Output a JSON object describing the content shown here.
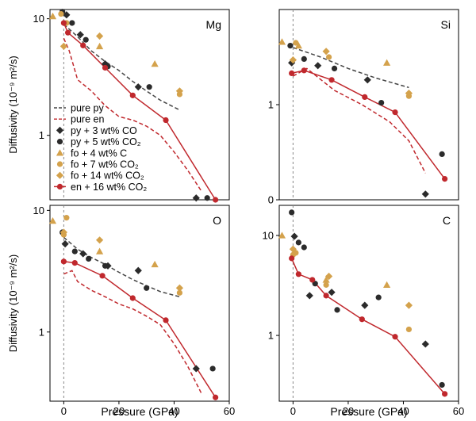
{
  "chart_data": [
    {
      "type": "scatter",
      "panel_label": "Mg",
      "ylabel": "Diffusivity (10⁻⁹ m²/s)",
      "xlabel": "",
      "xlim": [
        -5,
        60
      ],
      "ylim": [
        0.28,
        12
      ],
      "yscale": "log",
      "x_ticks": [],
      "y_ticks": [
        {
          "v": 1,
          "l": "1"
        },
        {
          "v": 10,
          "l": "10"
        }
      ],
      "series": [
        {
          "key": "pure_py",
          "name": "pure py",
          "points": [
            [
              0,
              9.0
            ],
            [
              5,
              7.0
            ],
            [
              10,
              5.3
            ],
            [
              15,
              4.3
            ],
            [
              20,
              3.6
            ],
            [
              25,
              2.9
            ],
            [
              30,
              2.4
            ],
            [
              35,
              2.0
            ],
            [
              42,
              1.65
            ]
          ]
        },
        {
          "key": "pure_en",
          "name": "pure en",
          "points": [
            [
              0,
              6.8
            ],
            [
              2,
              5.3
            ],
            [
              5,
              3.0
            ],
            [
              10,
              2.4
            ],
            [
              15,
              1.8
            ],
            [
              20,
              1.45
            ],
            [
              25,
              1.35
            ],
            [
              30,
              1.2
            ],
            [
              35,
              1.0
            ],
            [
              40,
              0.72
            ],
            [
              45,
              0.5
            ],
            [
              50,
              0.33
            ]
          ]
        },
        {
          "key": "py_3CO",
          "name": "py + 3 wt% CO",
          "points": [
            [
              1,
              10.8
            ],
            [
              6,
              7.3
            ],
            [
              15,
              4.1
            ],
            [
              27,
              2.6
            ],
            [
              48,
              0.29
            ]
          ]
        },
        {
          "key": "py_5CO2",
          "name": "py + 5 wt% CO₂",
          "points": [
            [
              -0.5,
              11.5
            ],
            [
              3,
              9.2
            ],
            [
              8,
              6.6
            ],
            [
              16,
              3.9
            ],
            [
              31,
              2.6
            ],
            [
              52,
              0.29
            ]
          ]
        },
        {
          "key": "fo_4C",
          "name": "fo + 4 wt% C",
          "points": [
            [
              -4,
              10.5
            ],
            [
              13,
              5.8
            ],
            [
              33,
              4.1
            ]
          ]
        },
        {
          "key": "fo_7CO2",
          "name": "fo + 7 wt% CO₂",
          "points": [
            [
              -1,
              11.0
            ],
            [
              1,
              9.2
            ],
            [
              42,
              2.25
            ]
          ]
        },
        {
          "key": "fo_14CO2",
          "name": "fo + 14 wt% CO₂",
          "points": [
            [
              0,
              5.8
            ],
            [
              13,
              7.1
            ],
            [
              42,
              2.4
            ]
          ]
        },
        {
          "key": "en_16CO2",
          "name": "en + 16 wt% CO₂",
          "points": [
            [
              0,
              9.2
            ],
            [
              1.5,
              7.6
            ],
            [
              7,
              5.9
            ],
            [
              15,
              3.8
            ],
            [
              25,
              2.2
            ],
            [
              37,
              1.35
            ],
            [
              55,
              0.28
            ]
          ]
        }
      ]
    },
    {
      "type": "scatter",
      "panel_label": "Si",
      "ylabel": "",
      "xlabel": "",
      "xlim": [
        -5,
        60
      ],
      "ylim": [
        0,
        2.0
      ],
      "yscale": "linear",
      "x_ticks": [],
      "y_ticks": [
        {
          "v": 0,
          "l": "0"
        },
        {
          "v": 1,
          "l": "1"
        }
      ],
      "series": [
        {
          "key": "pure_py",
          "points": [
            [
              0,
              1.6
            ],
            [
              10,
              1.5
            ],
            [
              20,
              1.38
            ],
            [
              30,
              1.28
            ],
            [
              42,
              1.18
            ]
          ]
        },
        {
          "key": "pure_en",
          "points": [
            [
              0,
              1.3
            ],
            [
              5,
              1.38
            ],
            [
              15,
              1.15
            ],
            [
              25,
              1.0
            ],
            [
              35,
              0.82
            ],
            [
              42,
              0.62
            ],
            [
              48,
              0.28
            ]
          ]
        },
        {
          "key": "py_3CO",
          "points": [
            [
              -0.5,
              1.44
            ],
            [
              9,
              1.41
            ],
            [
              27,
              1.26
            ],
            [
              48,
              0.06
            ]
          ]
        },
        {
          "key": "py_5CO2",
          "points": [
            [
              -1,
              1.62
            ],
            [
              4,
              1.48
            ],
            [
              15,
              1.38
            ],
            [
              32,
              1.02
            ],
            [
              54,
              0.48
            ]
          ]
        },
        {
          "key": "fo_4C",
          "points": [
            [
              -4,
              1.66
            ],
            [
              2,
              1.62
            ],
            [
              34,
              1.44
            ]
          ]
        },
        {
          "key": "fo_7CO2",
          "points": [
            [
              1,
              1.65
            ],
            [
              13,
              1.5
            ],
            [
              42,
              1.09
            ]
          ]
        },
        {
          "key": "fo_14CO2",
          "points": [
            [
              0,
              1.47
            ],
            [
              12,
              1.56
            ],
            [
              42,
              1.12
            ]
          ]
        },
        {
          "key": "en_16CO2",
          "points": [
            [
              -0.5,
              1.33
            ],
            [
              4,
              1.36
            ],
            [
              14,
              1.26
            ],
            [
              26,
              1.08
            ],
            [
              37,
              0.92
            ],
            [
              55,
              0.22
            ]
          ]
        }
      ]
    },
    {
      "type": "scatter",
      "panel_label": "O",
      "ylabel": "Diffusivity (10⁻⁹ m²/s)",
      "xlabel": "Pressure (GPa)",
      "xlim": [
        -5,
        60
      ],
      "ylim": [
        0.27,
        11
      ],
      "yscale": "log",
      "x_ticks": [
        {
          "v": 0,
          "l": "0"
        },
        {
          "v": 20,
          "l": "20"
        },
        {
          "v": 40,
          "l": "40"
        },
        {
          "v": 60,
          "l": "60"
        }
      ],
      "y_ticks": [
        {
          "v": 1,
          "l": "1"
        },
        {
          "v": 10,
          "l": "10"
        }
      ],
      "series": [
        {
          "key": "pure_py",
          "points": [
            [
              0,
              6.0
            ],
            [
              5,
              4.8
            ],
            [
              10,
              4.1
            ],
            [
              15,
              3.6
            ],
            [
              20,
              3.1
            ],
            [
              25,
              2.7
            ],
            [
              30,
              2.4
            ],
            [
              35,
              2.15
            ],
            [
              42,
              1.95
            ]
          ]
        },
        {
          "key": "pure_en",
          "points": [
            [
              0,
              3.0
            ],
            [
              3,
              3.2
            ],
            [
              5,
              2.6
            ],
            [
              10,
              2.2
            ],
            [
              15,
              1.95
            ],
            [
              20,
              1.7
            ],
            [
              25,
              1.55
            ],
            [
              30,
              1.35
            ],
            [
              35,
              1.15
            ],
            [
              40,
              0.8
            ],
            [
              45,
              0.52
            ],
            [
              50,
              0.31
            ]
          ]
        },
        {
          "key": "py_3CO",
          "points": [
            [
              0.5,
              5.3
            ],
            [
              7,
              4.4
            ],
            [
              16,
              3.5
            ],
            [
              27,
              3.2
            ],
            [
              48,
              0.5
            ]
          ]
        },
        {
          "key": "py_5CO2",
          "points": [
            [
              -0.5,
              6.6
            ],
            [
              4,
              4.6
            ],
            [
              9,
              4.0
            ],
            [
              15,
              3.5
            ],
            [
              30,
              2.3
            ],
            [
              54,
              0.5
            ]
          ]
        },
        {
          "key": "fo_4C",
          "points": [
            [
              -4,
              8.2
            ],
            [
              13,
              4.6
            ],
            [
              33,
              3.6
            ]
          ]
        },
        {
          "key": "fo_7CO2",
          "points": [
            [
              0,
              6.3
            ],
            [
              1,
              8.7
            ],
            [
              42,
              2.1
            ]
          ]
        },
        {
          "key": "fo_14CO2",
          "points": [
            [
              0,
              6.6
            ],
            [
              13,
              5.7
            ],
            [
              42,
              2.3
            ]
          ]
        },
        {
          "key": "en_16CO2",
          "points": [
            [
              0,
              3.8
            ],
            [
              4,
              3.7
            ],
            [
              14,
              2.9
            ],
            [
              25,
              1.9
            ],
            [
              37,
              1.25
            ],
            [
              55,
              0.29
            ]
          ]
        }
      ]
    },
    {
      "type": "scatter",
      "panel_label": "C",
      "ylabel": "",
      "xlabel": "Pressure (GPa)",
      "xlim": [
        -5,
        60
      ],
      "ylim": [
        0.22,
        20
      ],
      "yscale": "log",
      "x_ticks": [
        {
          "v": 0,
          "l": "0"
        },
        {
          "v": 20,
          "l": "20"
        },
        {
          "v": 40,
          "l": "40"
        },
        {
          "v": 60,
          "l": "60"
        }
      ],
      "y_ticks": [
        {
          "v": 1,
          "l": "1"
        },
        {
          "v": 10,
          "l": "10"
        }
      ],
      "series": [
        {
          "key": "py_3CO",
          "points": [
            [
              0.5,
              9.8
            ],
            [
              6,
              2.5
            ],
            [
              14,
              2.7
            ],
            [
              26,
              2.0
            ],
            [
              48,
              0.82
            ]
          ]
        },
        {
          "key": "py_5CO2",
          "points": [
            [
              -0.5,
              17.0
            ],
            [
              2,
              8.5
            ],
            [
              4,
              7.6
            ],
            [
              8,
              3.3
            ],
            [
              16,
              1.8
            ],
            [
              31,
              2.4
            ],
            [
              54,
              0.32
            ]
          ]
        },
        {
          "key": "fo_4C",
          "points": [
            [
              -4,
              10.0
            ],
            [
              12,
              3.6
            ],
            [
              34,
              3.2
            ]
          ]
        },
        {
          "key": "fo_7CO2",
          "points": [
            [
              0,
              6.4
            ],
            [
              1,
              6.7
            ],
            [
              12,
              3.2
            ],
            [
              42,
              1.15
            ]
          ]
        },
        {
          "key": "fo_14CO2",
          "points": [
            [
              0,
              7.3
            ],
            [
              13,
              3.9
            ],
            [
              42,
              2.0
            ]
          ]
        },
        {
          "key": "en_16CO2",
          "points": [
            [
              -0.5,
              5.9
            ],
            [
              2,
              4.1
            ],
            [
              7,
              3.6
            ],
            [
              12,
              2.5
            ],
            [
              25,
              1.45
            ],
            [
              37,
              0.97
            ],
            [
              55,
              0.26
            ]
          ]
        }
      ]
    }
  ],
  "legend": [
    {
      "key": "pure_py",
      "name": "pure py"
    },
    {
      "key": "pure_en",
      "name": "pure en"
    },
    {
      "key": "py_3CO",
      "name": "py + 3 wt% CO"
    },
    {
      "key": "py_5CO2",
      "name": "py + 5 wt% CO₂"
    },
    {
      "key": "fo_4C",
      "name": "fo + 4 wt% C"
    },
    {
      "key": "fo_7CO2",
      "name": "fo + 7 wt% CO₂"
    },
    {
      "key": "fo_14CO2",
      "name": "fo + 14 wt% CO₂"
    },
    {
      "key": "en_16CO2",
      "name": "en + 16 wt% CO₂"
    }
  ],
  "styles": {
    "pure_py": {
      "marker": "none",
      "line": "dashed",
      "color": "#444444"
    },
    "pure_en": {
      "marker": "none",
      "line": "dashed",
      "color": "#c0282d"
    },
    "py_3CO": {
      "marker": "diamond",
      "line": "none",
      "color": "#2b2b2b"
    },
    "py_5CO2": {
      "marker": "circle",
      "line": "none",
      "color": "#2b2b2b"
    },
    "fo_4C": {
      "marker": "triangle",
      "line": "none",
      "color": "#d4a24c"
    },
    "fo_7CO2": {
      "marker": "circle",
      "line": "none",
      "color": "#d4a24c"
    },
    "fo_14CO2": {
      "marker": "diamond",
      "line": "none",
      "color": "#d4a24c"
    },
    "en_16CO2": {
      "marker": "circle",
      "line": "solid",
      "color": "#c0282d"
    }
  }
}
